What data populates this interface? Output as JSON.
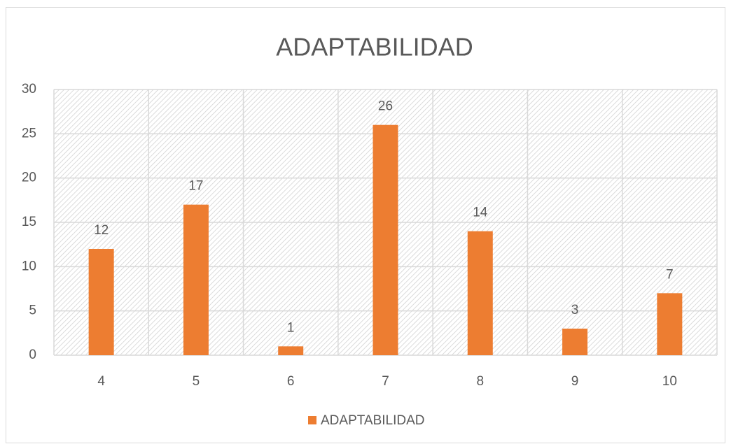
{
  "chart_data": {
    "type": "bar",
    "title": "ADAPTABILIDAD",
    "categories": [
      "4",
      "5",
      "6",
      "7",
      "8",
      "9",
      "10"
    ],
    "series": [
      {
        "name": "ADAPTABILIDAD",
        "color": "#ed7d31",
        "values": [
          12,
          17,
          1,
          26,
          14,
          3,
          7
        ]
      }
    ],
    "ylim": [
      0,
      30
    ],
    "yticks": [
      0,
      5,
      10,
      15,
      20,
      25,
      30
    ],
    "grid": true,
    "legend": "bottom"
  }
}
